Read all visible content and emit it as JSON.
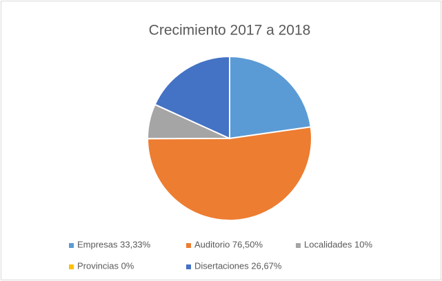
{
  "chart_data": {
    "type": "pie",
    "title": "Crecimiento 2017 a 2018",
    "categories": [
      "Empresas 33,33%",
      "Auditorio 76,50%",
      "Localidades 10%",
      "Provincias 0%",
      "Disertaciones 26,67%"
    ],
    "values": [
      33.33,
      76.5,
      10,
      0,
      26.67
    ],
    "colors": [
      "#5b9bd5",
      "#ed7d31",
      "#a5a5a5",
      "#ffc000",
      "#4472c4"
    ],
    "legend": "bottom"
  }
}
